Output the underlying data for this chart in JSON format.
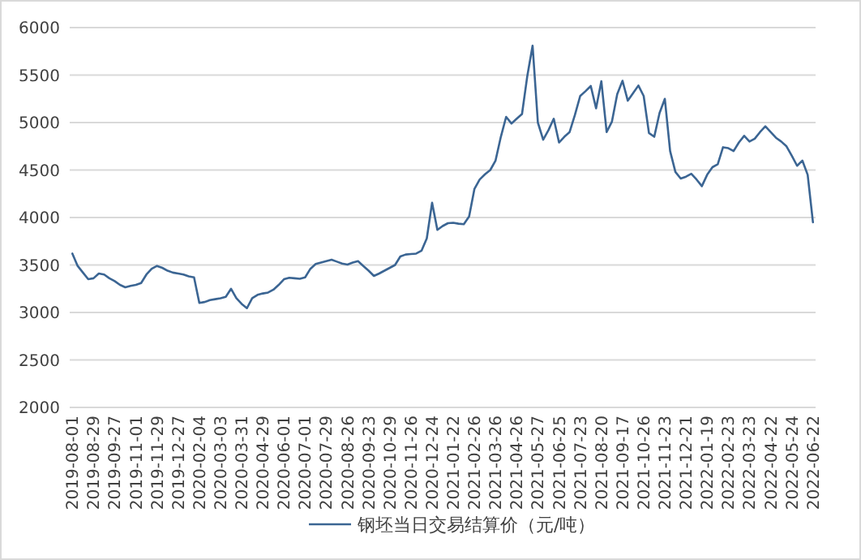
{
  "chart_data": {
    "type": "line",
    "categories": [
      "2019-08-01",
      null,
      null,
      null,
      "2019-08-29",
      null,
      null,
      null,
      "2019-09-27",
      null,
      null,
      null,
      "2019-11-01",
      null,
      null,
      null,
      "2019-11-29",
      null,
      null,
      null,
      "2019-12-27",
      null,
      null,
      null,
      "2020-02-04",
      null,
      null,
      null,
      "2020-03-03",
      null,
      null,
      null,
      "2020-03-31",
      null,
      null,
      null,
      "2020-04-29",
      null,
      null,
      null,
      "2020-06-01",
      null,
      null,
      null,
      "2020-07-01",
      null,
      null,
      null,
      "2020-07-29",
      null,
      null,
      null,
      "2020-08-26",
      null,
      null,
      null,
      "2020-09-23",
      null,
      null,
      null,
      "2020-10-29",
      null,
      null,
      null,
      "2020-11-26",
      null,
      null,
      null,
      "2020-12-24",
      null,
      null,
      null,
      "2021-01-22",
      null,
      null,
      null,
      "2021-02-26",
      null,
      null,
      null,
      "2021-03-26",
      null,
      null,
      null,
      "2021-04-26",
      null,
      null,
      null,
      "2021-05-27",
      null,
      null,
      null,
      "2021-06-25",
      null,
      null,
      null,
      "2021-07-23",
      null,
      null,
      null,
      "2021-08-20",
      null,
      null,
      null,
      "2021-09-17",
      null,
      null,
      null,
      "2021-10-26",
      null,
      null,
      null,
      "2021-11-23",
      null,
      null,
      null,
      "2021-12-21",
      null,
      null,
      null,
      "2022-01-19",
      null,
      null,
      null,
      "2022-02-23",
      null,
      null,
      null,
      "2022-03-23",
      null,
      null,
      null,
      "2022-04-22",
      null,
      null,
      null,
      "2022-05-24",
      null,
      null,
      null,
      "2022-06-22"
    ],
    "series": [
      {
        "name": "钢坯当日交易结算价（元/吨）",
        "color": "#3b6593",
        "values": [
          3620,
          3490,
          3420,
          3350,
          3360,
          3410,
          3400,
          3360,
          3330,
          3290,
          3265,
          3280,
          3290,
          3310,
          3400,
          3460,
          3490,
          3470,
          3440,
          3420,
          3410,
          3400,
          3380,
          3370,
          3100,
          3110,
          3130,
          3140,
          3150,
          3165,
          3250,
          3150,
          3090,
          3045,
          3150,
          3185,
          3200,
          3210,
          3240,
          3290,
          3350,
          3365,
          3360,
          3355,
          3370,
          3460,
          3510,
          3525,
          3540,
          3555,
          3535,
          3515,
          3505,
          3525,
          3540,
          3490,
          3440,
          3385,
          3410,
          3440,
          3470,
          3500,
          3590,
          3610,
          3615,
          3620,
          3650,
          3780,
          4155,
          3870,
          3910,
          3940,
          3945,
          3935,
          3930,
          4010,
          4300,
          4400,
          4455,
          4500,
          4600,
          4850,
          5060,
          4990,
          5040,
          5090,
          5490,
          5810,
          5000,
          4820,
          4920,
          5040,
          4790,
          4850,
          4900,
          5080,
          5280,
          5330,
          5385,
          5150,
          5435,
          4900,
          5010,
          5300,
          5440,
          5230,
          5310,
          5390,
          5280,
          4890,
          4850,
          5100,
          5250,
          4700,
          4480,
          4410,
          4430,
          4460,
          4400,
          4330,
          4450,
          4530,
          4560,
          4740,
          4730,
          4700,
          4790,
          4860,
          4800,
          4830,
          4900,
          4960,
          4900,
          4840,
          4800,
          4750,
          4650,
          4545,
          4600,
          4450,
          3950
        ]
      }
    ],
    "ylim": [
      2000,
      6000
    ],
    "yticks": [
      2000,
      2500,
      3000,
      3500,
      4000,
      4500,
      5000,
      5500,
      6000
    ],
    "grid": "y",
    "legend": "bottom"
  }
}
